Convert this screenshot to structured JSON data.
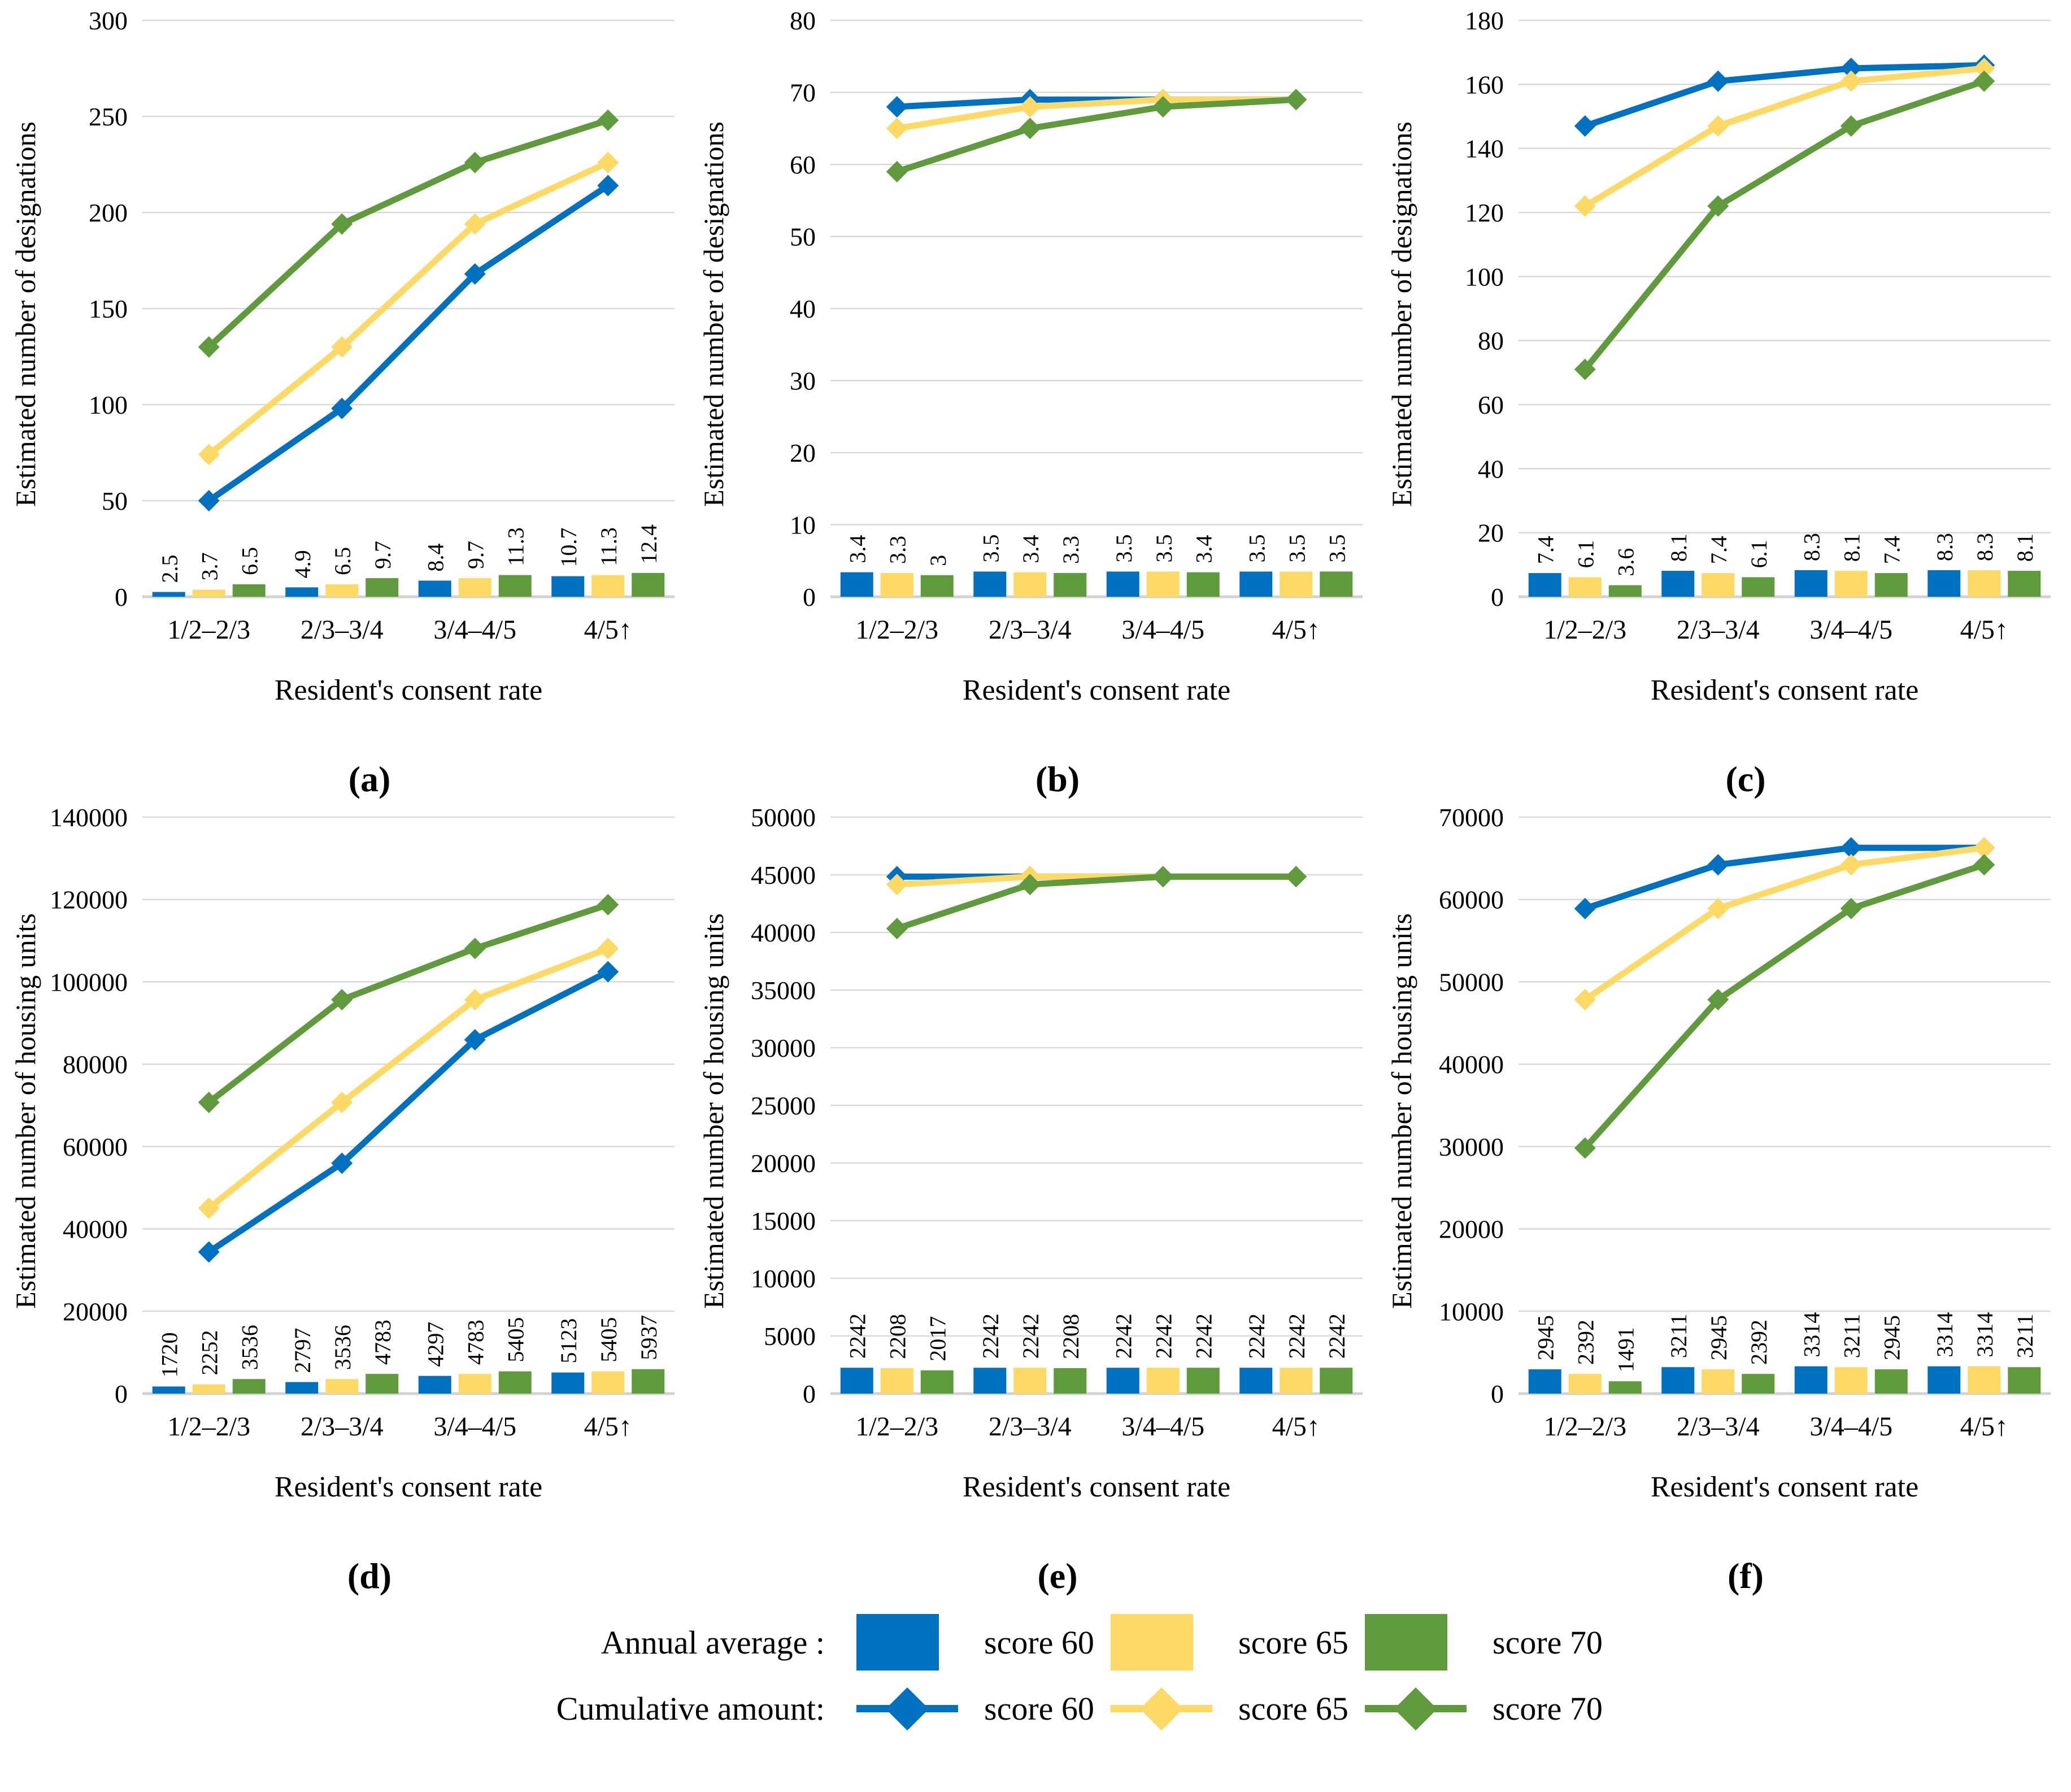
{
  "colors": {
    "blue": "#0070C0",
    "yellow": "#FFD966",
    "green": "#5F9A3C",
    "grid": "#D9D9D9",
    "baseline": "#D2D2D2"
  },
  "legend": {
    "rows": [
      {
        "label": "Annual average :",
        "marker": "square",
        "items": [
          {
            "name": "score 60",
            "color": "blue"
          },
          {
            "name": "score 65",
            "color": "yellow"
          },
          {
            "name": "score 70",
            "color": "green"
          }
        ]
      },
      {
        "label": "Cumulative amount:",
        "marker": "line-diamond",
        "items": [
          {
            "name": "score 60",
            "color": "blue"
          },
          {
            "name": "score 65",
            "color": "yellow"
          },
          {
            "name": "score 70",
            "color": "green"
          }
        ]
      }
    ]
  },
  "chart_data": [
    {
      "id": "a",
      "caption": "(a)",
      "type": "bar+line",
      "ylabel": "Estimated number of designations",
      "xlabel": "Resident's consent rate",
      "categories": [
        "1/2–2/3",
        "2/3–3/4",
        "3/4–4/5",
        "4/5↑"
      ],
      "ylim": [
        0,
        300
      ],
      "ytick_step": 50,
      "grid": true,
      "bar_series": [
        {
          "name": "Annual average score 60",
          "color": "blue",
          "values": [
            2.5,
            4.9,
            8.4,
            10.7
          ],
          "labels": [
            "2.5",
            "4.9",
            "8.4",
            "10.7"
          ]
        },
        {
          "name": "Annual average score 65",
          "color": "yellow",
          "values": [
            3.7,
            6.5,
            9.7,
            11.3
          ],
          "labels": [
            "3.7",
            "6.5",
            "9.7",
            "11.3"
          ]
        },
        {
          "name": "Annual average score 70",
          "color": "green",
          "values": [
            6.5,
            9.7,
            11.3,
            12.4
          ],
          "labels": [
            "6.5",
            "9.7",
            "11.3",
            "12.4"
          ]
        }
      ],
      "line_series": [
        {
          "name": "Cumulative amount score 60",
          "color": "blue",
          "values": [
            50,
            98,
            168,
            214
          ]
        },
        {
          "name": "Cumulative amount score 65",
          "color": "yellow",
          "values": [
            74,
            130,
            194,
            226
          ]
        },
        {
          "name": "Cumulative amount score 70",
          "color": "green",
          "values": [
            130,
            194,
            226,
            248
          ]
        }
      ]
    },
    {
      "id": "b",
      "caption": "(b)",
      "type": "bar+line",
      "ylabel": "Estimated number of designations",
      "xlabel": "Resident's consent rate",
      "categories": [
        "1/2–2/3",
        "2/3–3/4",
        "3/4–4/5",
        "4/5↑"
      ],
      "ylim": [
        0,
        80
      ],
      "ytick_step": 10,
      "grid": true,
      "bar_series": [
        {
          "name": "Annual average score 60",
          "color": "blue",
          "values": [
            3.4,
            3.5,
            3.5,
            3.5
          ],
          "labels": [
            "3.4",
            "3.5",
            "3.5",
            "3.5"
          ]
        },
        {
          "name": "Annual average score 65",
          "color": "yellow",
          "values": [
            3.3,
            3.4,
            3.5,
            3.5
          ],
          "labels": [
            "3.3",
            "3.4",
            "3.5",
            "3.5"
          ]
        },
        {
          "name": "Annual average score 70",
          "color": "green",
          "values": [
            3.0,
            3.3,
            3.4,
            3.5
          ],
          "labels": [
            "3",
            "3.3",
            "3.4",
            "3.5"
          ]
        }
      ],
      "line_series": [
        {
          "name": "Cumulative amount score 60",
          "color": "blue",
          "values": [
            68,
            69,
            69,
            69
          ]
        },
        {
          "name": "Cumulative amount score 65",
          "color": "yellow",
          "values": [
            65,
            68,
            69,
            69
          ]
        },
        {
          "name": "Cumulative amount score 70",
          "color": "green",
          "values": [
            59,
            65,
            68,
            69
          ]
        }
      ]
    },
    {
      "id": "c",
      "caption": "(c)",
      "type": "bar+line",
      "ylabel": "Estimated number of designations",
      "xlabel": "Resident's consent rate",
      "categories": [
        "1/2–2/3",
        "2/3–3/4",
        "3/4–4/5",
        "4/5↑"
      ],
      "ylim": [
        0,
        180
      ],
      "ytick_step": 20,
      "grid": true,
      "bar_series": [
        {
          "name": "Annual average score 60",
          "color": "blue",
          "values": [
            7.4,
            8.1,
            8.3,
            8.3
          ],
          "labels": [
            "7.4",
            "8.1",
            "8.3",
            "8.3"
          ]
        },
        {
          "name": "Annual average score 65",
          "color": "yellow",
          "values": [
            6.1,
            7.4,
            8.1,
            8.3
          ],
          "labels": [
            "6.1",
            "7.4",
            "8.1",
            "8.3"
          ]
        },
        {
          "name": "Annual average score 70",
          "color": "green",
          "values": [
            3.6,
            6.1,
            7.4,
            8.1
          ],
          "labels": [
            "3.6",
            "6.1",
            "7.4",
            "8.1"
          ]
        }
      ],
      "line_series": [
        {
          "name": "Cumulative amount score 60",
          "color": "blue",
          "values": [
            147,
            161,
            165,
            166
          ]
        },
        {
          "name": "Cumulative amount score 65",
          "color": "yellow",
          "values": [
            122,
            147,
            161,
            165
          ]
        },
        {
          "name": "Cumulative amount score 70",
          "color": "green",
          "values": [
            71,
            122,
            147,
            161
          ]
        }
      ]
    },
    {
      "id": "d",
      "caption": "(d)",
      "type": "bar+line",
      "ylabel": "Estimated number of housing units",
      "xlabel": "Resident's consent rate",
      "categories": [
        "1/2–2/3",
        "2/3–3/4",
        "3/4–4/5",
        "4/5↑"
      ],
      "ylim": [
        0,
        140000
      ],
      "ytick_step": 20000,
      "grid": true,
      "bar_series": [
        {
          "name": "Annual average score 60",
          "color": "blue",
          "values": [
            1720,
            2797,
            4297,
            5123
          ],
          "labels": [
            "1720",
            "2797",
            "4297",
            "5123"
          ]
        },
        {
          "name": "Annual average score 65",
          "color": "yellow",
          "values": [
            2252,
            3536,
            4783,
            5405
          ],
          "labels": [
            "2252",
            "3536",
            "4783",
            "5405"
          ]
        },
        {
          "name": "Annual average score 70",
          "color": "green",
          "values": [
            3536,
            4783,
            5405,
            5937
          ],
          "labels": [
            "3536",
            "4783",
            "5405",
            "5937"
          ]
        }
      ],
      "line_series": [
        {
          "name": "Cumulative amount score 60",
          "color": "blue",
          "values": [
            34400,
            55940,
            85940,
            102460
          ]
        },
        {
          "name": "Cumulative amount score 65",
          "color": "yellow",
          "values": [
            45040,
            70720,
            95660,
            108100
          ]
        },
        {
          "name": "Cumulative amount score 70",
          "color": "green",
          "values": [
            70720,
            95660,
            108100,
            118740
          ]
        }
      ]
    },
    {
      "id": "e",
      "caption": "(e)",
      "type": "bar+line",
      "ylabel": "Estimated number of housing units",
      "xlabel": "Resident's consent rate",
      "categories": [
        "1/2–2/3",
        "2/3–3/4",
        "3/4–4/5",
        "4/5↑"
      ],
      "ylim": [
        0,
        50000
      ],
      "ytick_step": 5000,
      "grid": true,
      "bar_series": [
        {
          "name": "Annual average score 60",
          "color": "blue",
          "values": [
            2242,
            2242,
            2242,
            2242
          ],
          "labels": [
            "2242",
            "2242",
            "2242",
            "2242"
          ]
        },
        {
          "name": "Annual average score 65",
          "color": "yellow",
          "values": [
            2208,
            2242,
            2242,
            2242
          ],
          "labels": [
            "2208",
            "2242",
            "2242",
            "2242"
          ]
        },
        {
          "name": "Annual average score 70",
          "color": "green",
          "values": [
            2017,
            2208,
            2242,
            2242
          ],
          "labels": [
            "2017",
            "2208",
            "2242",
            "2242"
          ]
        }
      ],
      "line_series": [
        {
          "name": "Cumulative amount score 60",
          "color": "blue",
          "values": [
            44840,
            44840,
            44840,
            44840
          ]
        },
        {
          "name": "Cumulative amount score 65",
          "color": "yellow",
          "values": [
            44160,
            44840,
            44840,
            44840
          ]
        },
        {
          "name": "Cumulative amount score 70",
          "color": "green",
          "values": [
            40340,
            44160,
            44840,
            44840
          ]
        }
      ]
    },
    {
      "id": "f",
      "caption": "(f)",
      "type": "bar+line",
      "ylabel": "Estimated number of housing units",
      "xlabel": "Resident's consent rate",
      "categories": [
        "1/2–2/3",
        "2/3–3/4",
        "3/4–4/5",
        "4/5↑"
      ],
      "ylim": [
        0,
        70000
      ],
      "ytick_step": 10000,
      "grid": true,
      "bar_series": [
        {
          "name": "Annual average score 60",
          "color": "blue",
          "values": [
            2945,
            3211,
            3314,
            3314
          ],
          "labels": [
            "2945",
            "3211",
            "3314",
            "3314"
          ]
        },
        {
          "name": "Annual average score 65",
          "color": "yellow",
          "values": [
            2392,
            2945,
            3211,
            3314
          ],
          "labels": [
            "2392",
            "2945",
            "3211",
            "3314"
          ]
        },
        {
          "name": "Annual average score 70",
          "color": "green",
          "values": [
            1491,
            2392,
            2945,
            3211
          ],
          "labels": [
            "1491",
            "2392",
            "2945",
            "3211"
          ]
        }
      ],
      "line_series": [
        {
          "name": "Cumulative amount score 60",
          "color": "blue",
          "values": [
            58900,
            64220,
            66280,
            66280
          ]
        },
        {
          "name": "Cumulative amount score 65",
          "color": "yellow",
          "values": [
            47840,
            58900,
            64220,
            66280
          ]
        },
        {
          "name": "Cumulative amount score 70",
          "color": "green",
          "values": [
            29820,
            47840,
            58900,
            64220
          ]
        }
      ]
    }
  ]
}
